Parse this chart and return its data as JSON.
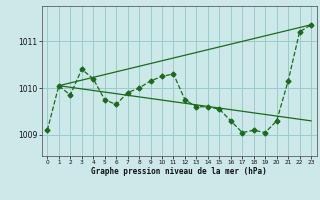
{
  "title": "Graphe pression niveau de la mer (hPa)",
  "bg_color": "#cce8e8",
  "grid_color": "#99cccc",
  "line_color": "#1a6b1a",
  "x_min": -0.5,
  "x_max": 23.5,
  "y_min": 1008.55,
  "y_max": 1011.75,
  "yticks": [
    1009,
    1010,
    1011
  ],
  "xticks": [
    0,
    1,
    2,
    3,
    4,
    5,
    6,
    7,
    8,
    9,
    10,
    11,
    12,
    13,
    14,
    15,
    16,
    17,
    18,
    19,
    20,
    21,
    22,
    23
  ],
  "series1_x": [
    0,
    1,
    2,
    3,
    4,
    5,
    6,
    7,
    8,
    9,
    10,
    11,
    12,
    13,
    14,
    15,
    16,
    17,
    18,
    19,
    20,
    21,
    22,
    23
  ],
  "series1_y": [
    1009.1,
    1010.05,
    1009.85,
    1010.4,
    1010.2,
    1009.75,
    1009.65,
    1009.9,
    1010.0,
    1010.15,
    1010.25,
    1010.3,
    1009.75,
    1009.6,
    1009.6,
    1009.55,
    1009.3,
    1009.05,
    1009.1,
    1009.05,
    1009.3,
    1010.15,
    1011.2,
    1011.35
  ],
  "series2_x": [
    1,
    23
  ],
  "series2_y": [
    1010.05,
    1011.35
  ],
  "series3_x": [
    1,
    23
  ],
  "series3_y": [
    1010.05,
    1009.3
  ]
}
